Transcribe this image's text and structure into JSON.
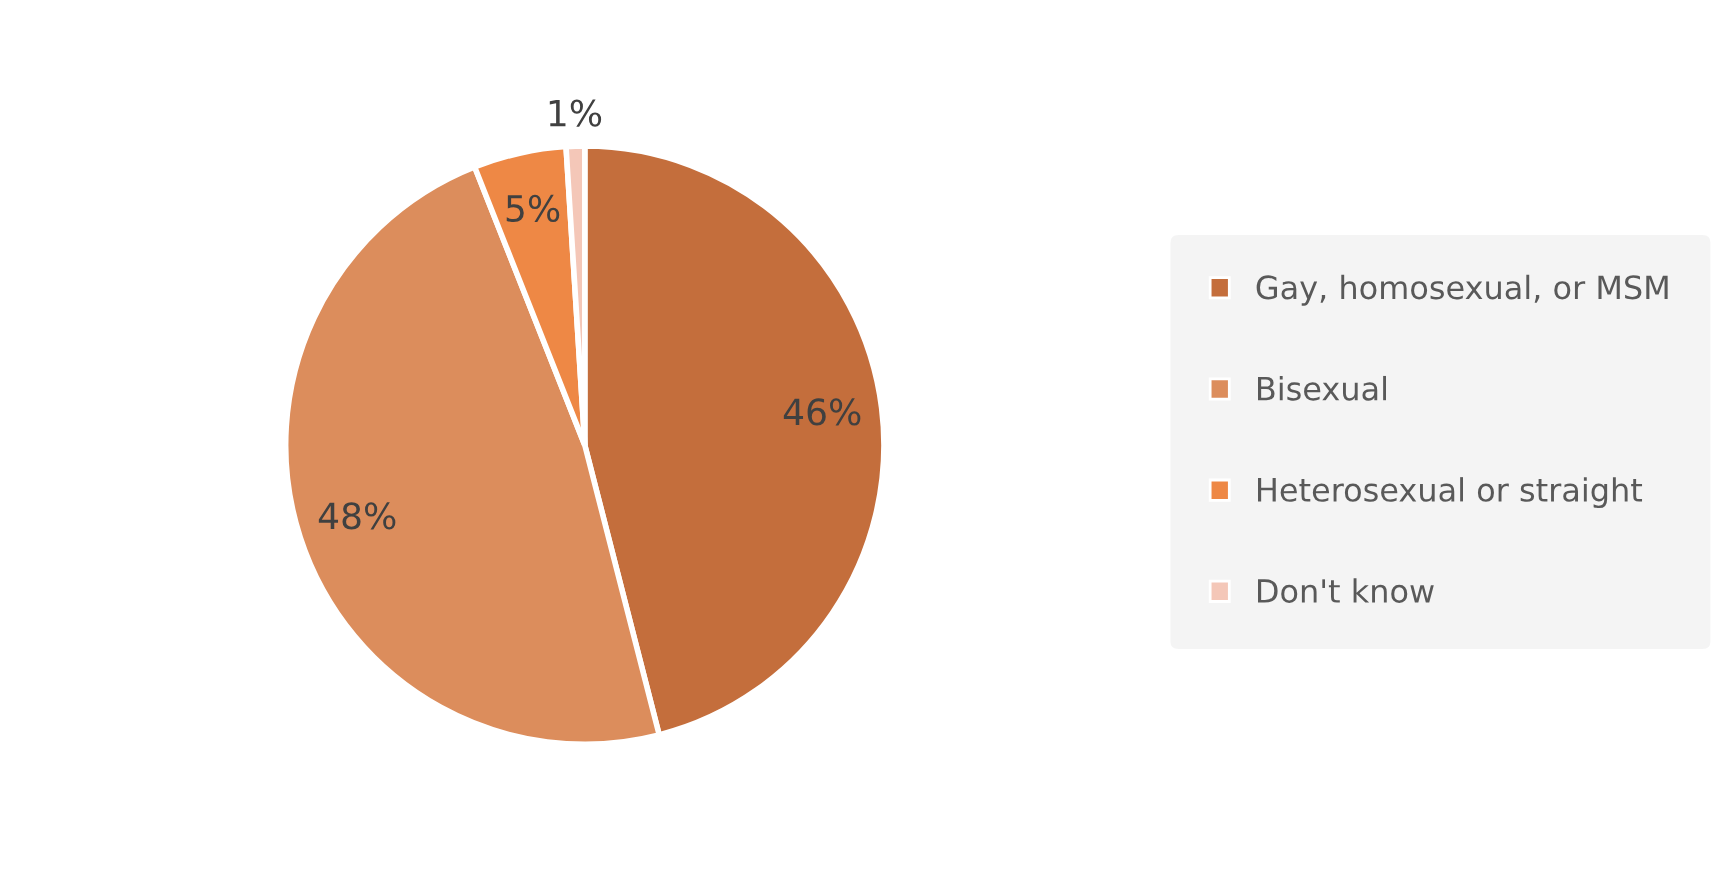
{
  "chart_data": {
    "type": "pie",
    "categories": [
      "Gay, homosexual, or MSM",
      "Bisexual",
      "Heterosexual or straight",
      "Don't know"
    ],
    "values": [
      46,
      48,
      5,
      1
    ],
    "colors": [
      "#c46e3c",
      "#dc8d5c",
      "#ee8845",
      "#f4c7b8"
    ],
    "value_labels": [
      "46%",
      "48%",
      "5%",
      "1%"
    ],
    "legend": "right"
  }
}
